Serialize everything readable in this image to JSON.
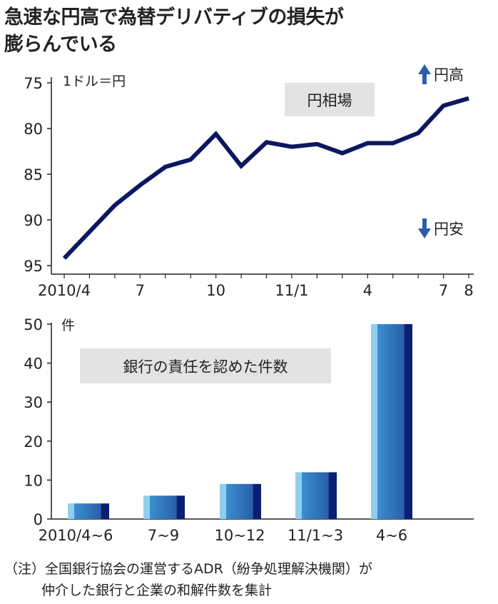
{
  "title": {
    "line1": "急速な円高で為替デリバティブの損失が",
    "line2": "膨らんでいる"
  },
  "chart_data": [
    {
      "type": "line",
      "label": "円相場",
      "unit": "1ドル＝円",
      "y_inverted": true,
      "ylim": [
        95,
        75
      ],
      "yticks": [
        75,
        80,
        85,
        90,
        95
      ],
      "x_tick_labels": [
        "2010/4",
        "7",
        "10",
        "11/1",
        "4",
        "7",
        "8"
      ],
      "x": [
        "2010/4",
        "2010/5",
        "2010/6",
        "2010/7",
        "2010/8",
        "2010/9",
        "2010/10",
        "2010/11",
        "2010/12",
        "2011/1",
        "2011/2",
        "2011/3",
        "2011/4",
        "2011/5",
        "2011/6",
        "2011/7",
        "2011/8"
      ],
      "values": [
        94.2,
        91.3,
        88.4,
        86.2,
        84.2,
        83.4,
        80.6,
        84.1,
        81.5,
        82.0,
        81.7,
        82.7,
        81.6,
        81.6,
        80.5,
        77.5,
        76.7
      ],
      "annotation_up": "円高",
      "annotation_down": "円安",
      "color": "#0b1760"
    },
    {
      "type": "bar",
      "label": "銀行の責任を認めた件数",
      "unit": "件",
      "categories": [
        "2010/4~6",
        "7~9",
        "10~12",
        "11/1~3",
        "4~6"
      ],
      "values": [
        4,
        6,
        9,
        12,
        50
      ],
      "ylim": [
        0,
        50
      ],
      "yticks": [
        0,
        10,
        20,
        30,
        40,
        50
      ]
    }
  ],
  "note": {
    "line1": "（注）全国銀行協会の運営するADR（紛争処理解決機関）が",
    "line2": "仲介した銀行と企業の和解件数を集計"
  },
  "colors": {
    "line": "#0b1760",
    "label_box": "#e3e3e3",
    "bar_light": "#8fcfee",
    "bar_mid": "#2f72b6",
    "bar_dark": "#0b1f72"
  }
}
